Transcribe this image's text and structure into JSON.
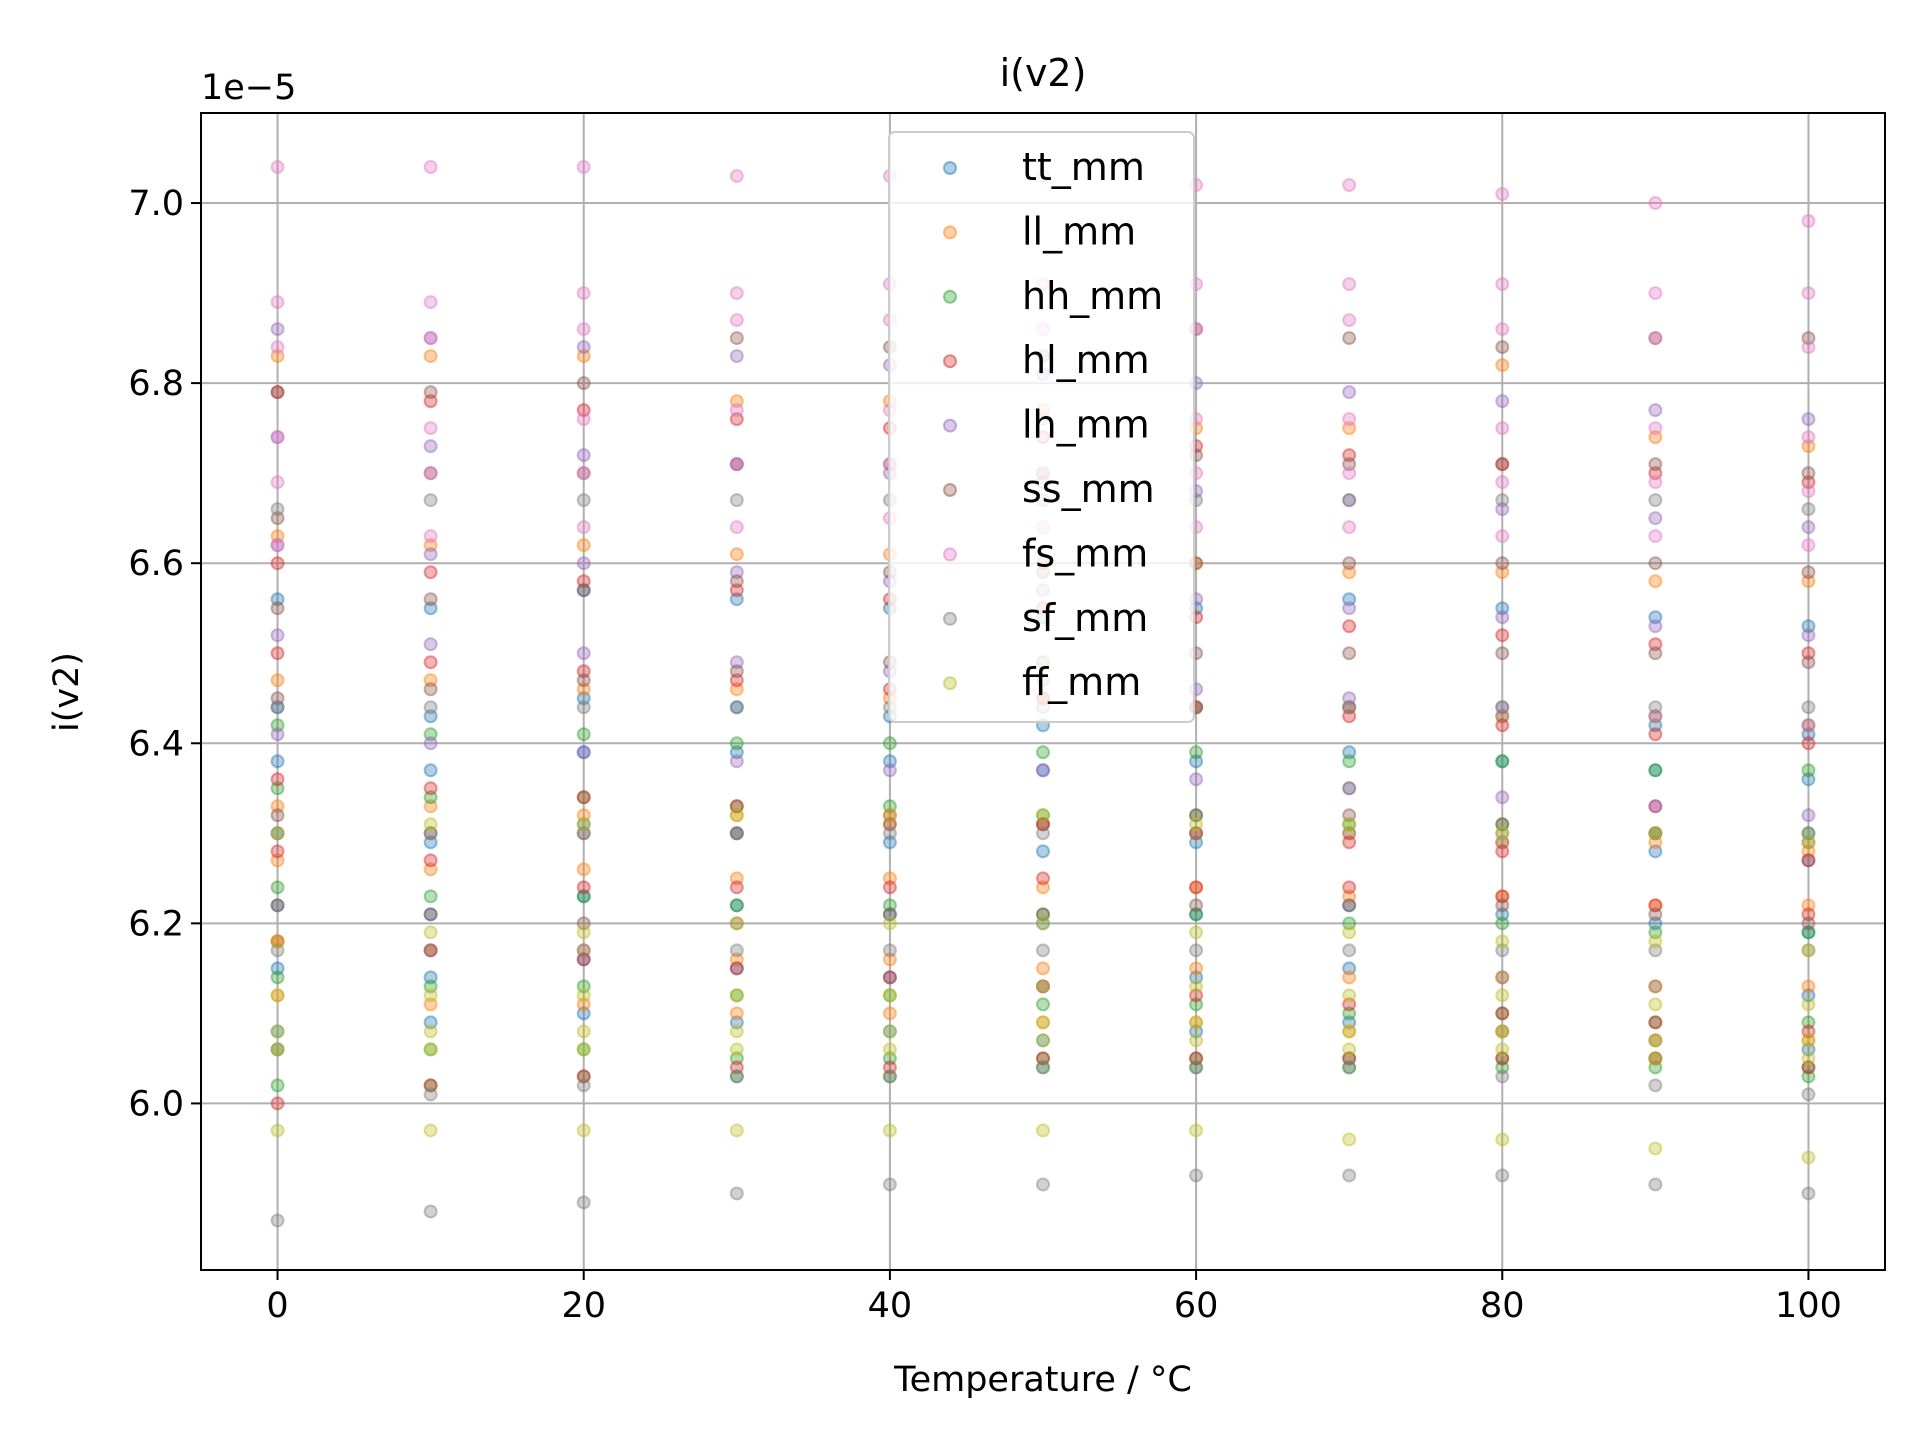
{
  "chart_data": {
    "type": "scatter",
    "title": "i(v2)",
    "xlabel": "Temperature / °C",
    "ylabel": "i(v2)",
    "y_offset_label": "1e−5",
    "xlim": [
      -5,
      105
    ],
    "ylim": [
      5.815,
      7.1
    ],
    "x_ticks": [
      0,
      20,
      40,
      60,
      80,
      100
    ],
    "x_tick_labels": [
      "0",
      "20",
      "40",
      "60",
      "80",
      "100"
    ],
    "y_ticks": [
      6.0,
      6.2,
      6.4,
      6.6,
      6.8,
      7.0
    ],
    "y_tick_labels": [
      "6.0",
      "6.2",
      "6.4",
      "6.6",
      "6.8",
      "7.0"
    ],
    "grid": true,
    "legend_position": "upper-center",
    "x": [
      0,
      10,
      20,
      30,
      40,
      50,
      60,
      70,
      80,
      90,
      100
    ],
    "series": [
      {
        "name": "tt_mm",
        "color": "#1f77b4",
        "values": [
          [
            6.56,
            6.44,
            6.38,
            6.3,
            6.22,
            6.15,
            6.08
          ],
          [
            6.55,
            6.43,
            6.37,
            6.29,
            6.21,
            6.14,
            6.09
          ],
          [
            6.57,
            6.45,
            6.39,
            6.31,
            6.23,
            6.16,
            6.1
          ],
          [
            6.56,
            6.44,
            6.39,
            6.3,
            6.22,
            6.15,
            6.09
          ],
          [
            6.55,
            6.43,
            6.38,
            6.29,
            6.21,
            6.14,
            6.08
          ],
          [
            6.54,
            6.42,
            6.37,
            6.28,
            6.2,
            6.13,
            6.07
          ],
          [
            6.55,
            6.44,
            6.38,
            6.29,
            6.21,
            6.14,
            6.08
          ],
          [
            6.56,
            6.44,
            6.39,
            6.3,
            6.22,
            6.15,
            6.09
          ],
          [
            6.55,
            6.43,
            6.38,
            6.29,
            6.21,
            6.14,
            6.08
          ],
          [
            6.54,
            6.42,
            6.37,
            6.28,
            6.2,
            6.13,
            6.07
          ],
          [
            6.53,
            6.41,
            6.36,
            6.27,
            6.19,
            6.12,
            6.06
          ]
        ]
      },
      {
        "name": "ll_mm",
        "color": "#ff7f0e",
        "values": [
          [
            6.83,
            6.63,
            6.47,
            6.33,
            6.27,
            6.18,
            6.12
          ],
          [
            6.83,
            6.62,
            6.47,
            6.33,
            6.26,
            6.17,
            6.11
          ],
          [
            6.83,
            6.62,
            6.46,
            6.32,
            6.26,
            6.17,
            6.11
          ],
          [
            6.78,
            6.61,
            6.46,
            6.32,
            6.25,
            6.16,
            6.1
          ],
          [
            6.78,
            6.61,
            6.45,
            6.31,
            6.25,
            6.16,
            6.1
          ],
          [
            6.77,
            6.6,
            6.45,
            6.31,
            6.24,
            6.15,
            6.09
          ],
          [
            6.75,
            6.6,
            6.44,
            6.3,
            6.24,
            6.15,
            6.09
          ],
          [
            6.75,
            6.59,
            6.44,
            6.3,
            6.23,
            6.14,
            6.08
          ],
          [
            6.82,
            6.59,
            6.43,
            6.29,
            6.23,
            6.14,
            6.08
          ],
          [
            6.74,
            6.58,
            6.43,
            6.29,
            6.22,
            6.13,
            6.07
          ],
          [
            6.73,
            6.58,
            6.42,
            6.28,
            6.22,
            6.13,
            6.07
          ]
        ]
      },
      {
        "name": "hh_mm",
        "color": "#2ca02c",
        "values": [
          [
            6.42,
            6.35,
            6.24,
            6.14,
            6.06,
            6.02
          ],
          [
            6.41,
            6.34,
            6.23,
            6.13,
            6.06,
            6.02
          ],
          [
            6.41,
            6.34,
            6.23,
            6.13,
            6.06,
            6.03
          ],
          [
            6.4,
            6.33,
            6.22,
            6.12,
            6.05,
            6.03
          ],
          [
            6.4,
            6.33,
            6.22,
            6.12,
            6.05,
            6.03
          ],
          [
            6.39,
            6.32,
            6.21,
            6.11,
            6.05,
            6.04
          ],
          [
            6.39,
            6.32,
            6.21,
            6.11,
            6.05,
            6.04
          ],
          [
            6.38,
            6.31,
            6.2,
            6.1,
            6.05,
            6.04
          ],
          [
            6.38,
            6.31,
            6.2,
            6.1,
            6.05,
            6.04
          ],
          [
            6.37,
            6.3,
            6.19,
            6.09,
            6.05,
            6.04
          ],
          [
            6.37,
            6.3,
            6.19,
            6.09,
            6.04,
            6.03
          ]
        ]
      },
      {
        "name": "hl_mm",
        "color": "#d62728",
        "values": [
          [
            6.79,
            6.6,
            6.5,
            6.36,
            6.28,
            6.18,
            6.0
          ],
          [
            6.78,
            6.59,
            6.49,
            6.35,
            6.27,
            6.17,
            6.02
          ],
          [
            6.77,
            6.58,
            6.48,
            6.34,
            6.24,
            6.16,
            6.03
          ],
          [
            6.76,
            6.57,
            6.47,
            6.33,
            6.24,
            6.15,
            6.04
          ],
          [
            6.75,
            6.56,
            6.46,
            6.32,
            6.24,
            6.14,
            6.04
          ],
          [
            6.74,
            6.55,
            6.45,
            6.31,
            6.25,
            6.13,
            6.05
          ],
          [
            6.73,
            6.54,
            6.44,
            6.3,
            6.24,
            6.12,
            6.05
          ],
          [
            6.72,
            6.53,
            6.43,
            6.29,
            6.24,
            6.11,
            6.05
          ],
          [
            6.71,
            6.52,
            6.42,
            6.28,
            6.23,
            6.1,
            6.05
          ],
          [
            6.7,
            6.51,
            6.41,
            6.33,
            6.22,
            6.09,
            6.05
          ],
          [
            6.69,
            6.5,
            6.4,
            6.27,
            6.21,
            6.08,
            6.04
          ]
        ]
      },
      {
        "name": "lh_mm",
        "color": "#9467bd",
        "values": [
          [
            6.86,
            6.74,
            6.62,
            6.52,
            6.41
          ],
          [
            6.85,
            6.73,
            6.61,
            6.51,
            6.4
          ],
          [
            6.84,
            6.72,
            6.6,
            6.5,
            6.39
          ],
          [
            6.83,
            6.71,
            6.59,
            6.49,
            6.38
          ],
          [
            6.82,
            6.7,
            6.58,
            6.48,
            6.37
          ],
          [
            6.81,
            6.69,
            6.57,
            6.47,
            6.37
          ],
          [
            6.8,
            6.68,
            6.56,
            6.46,
            6.36
          ],
          [
            6.79,
            6.67,
            6.55,
            6.45,
            6.35
          ],
          [
            6.78,
            6.66,
            6.54,
            6.44,
            6.34
          ],
          [
            6.77,
            6.65,
            6.53,
            6.43,
            6.33
          ],
          [
            6.76,
            6.64,
            6.52,
            6.42,
            6.32
          ]
        ]
      },
      {
        "name": "ss_mm",
        "color": "#8c564b",
        "values": [
          [
            6.79,
            6.65,
            6.55,
            6.45,
            6.32,
            6.22
          ],
          [
            6.79,
            6.7,
            6.56,
            6.46,
            6.3,
            6.21
          ],
          [
            6.8,
            6.7,
            6.57,
            6.47,
            6.3,
            6.2
          ],
          [
            6.85,
            6.71,
            6.58,
            6.48,
            6.3,
            6.2
          ],
          [
            6.84,
            6.71,
            6.59,
            6.49,
            6.31,
            6.21
          ],
          [
            6.83,
            6.7,
            6.59,
            6.49,
            6.31,
            6.21
          ],
          [
            6.86,
            6.72,
            6.6,
            6.5,
            6.32,
            6.22
          ],
          [
            6.85,
            6.71,
            6.6,
            6.5,
            6.32,
            6.22
          ],
          [
            6.84,
            6.71,
            6.6,
            6.5,
            6.31,
            6.22
          ],
          [
            6.85,
            6.71,
            6.6,
            6.5,
            6.3,
            6.21
          ],
          [
            6.85,
            6.7,
            6.59,
            6.49,
            6.29,
            6.2
          ]
        ]
      },
      {
        "name": "fs_mm",
        "color": "#e377c2",
        "values": [
          [
            7.04,
            6.89,
            6.84,
            6.74,
            6.69,
            6.62
          ],
          [
            7.04,
            6.89,
            6.85,
            6.75,
            6.7,
            6.63
          ],
          [
            7.04,
            6.9,
            6.86,
            6.76,
            6.7,
            6.64
          ],
          [
            7.03,
            6.9,
            6.87,
            6.77,
            6.71,
            6.64
          ],
          [
            7.03,
            6.91,
            6.87,
            6.77,
            6.71,
            6.65
          ],
          [
            7.03,
            6.91,
            6.86,
            6.76,
            6.7,
            6.64
          ],
          [
            7.02,
            6.91,
            6.86,
            6.76,
            6.7,
            6.64
          ],
          [
            7.02,
            6.91,
            6.87,
            6.76,
            6.7,
            6.64
          ],
          [
            7.01,
            6.91,
            6.86,
            6.75,
            6.69,
            6.63
          ],
          [
            7.0,
            6.9,
            6.85,
            6.75,
            6.69,
            6.63
          ],
          [
            6.98,
            6.9,
            6.84,
            6.74,
            6.68,
            6.62
          ]
        ]
      },
      {
        "name": "sf_mm",
        "color": "#7f7f7f",
        "values": [
          [
            6.66,
            6.44,
            6.3,
            6.17,
            6.06,
            5.87
          ],
          [
            6.67,
            6.44,
            6.3,
            6.17,
            6.01,
            5.88
          ],
          [
            6.67,
            6.44,
            6.3,
            6.17,
            6.02,
            5.89
          ],
          [
            6.67,
            6.44,
            6.3,
            6.17,
            6.03,
            5.9
          ],
          [
            6.67,
            6.44,
            6.3,
            6.17,
            6.03,
            5.91
          ],
          [
            6.67,
            6.44,
            6.3,
            6.17,
            6.04,
            5.91
          ],
          [
            6.67,
            6.44,
            6.3,
            6.17,
            6.04,
            5.92
          ],
          [
            6.67,
            6.44,
            6.35,
            6.17,
            6.04,
            5.92
          ],
          [
            6.67,
            6.44,
            6.3,
            6.17,
            6.03,
            5.92
          ],
          [
            6.67,
            6.44,
            6.3,
            6.17,
            6.02,
            5.91
          ],
          [
            6.66,
            6.44,
            6.3,
            6.17,
            6.01,
            5.9
          ]
        ]
      },
      {
        "name": "ff_mm",
        "color": "#bcbd22",
        "values": [
          [
            6.3,
            6.18,
            6.12,
            6.08,
            6.06,
            5.97
          ],
          [
            6.31,
            6.19,
            6.12,
            6.08,
            6.06,
            5.97
          ],
          [
            6.31,
            6.19,
            6.12,
            6.08,
            6.06,
            5.97
          ],
          [
            6.32,
            6.2,
            6.12,
            6.08,
            6.06,
            5.97
          ],
          [
            6.32,
            6.2,
            6.12,
            6.08,
            6.06,
            5.97
          ],
          [
            6.32,
            6.2,
            6.13,
            6.09,
            6.07,
            5.97
          ],
          [
            6.31,
            6.19,
            6.13,
            6.09,
            6.07,
            5.97
          ],
          [
            6.31,
            6.19,
            6.12,
            6.08,
            6.06,
            5.96
          ],
          [
            6.3,
            6.18,
            6.12,
            6.08,
            6.06,
            5.96
          ],
          [
            6.3,
            6.18,
            6.11,
            6.07,
            6.05,
            5.95
          ],
          [
            6.29,
            6.17,
            6.11,
            6.07,
            6.05,
            5.94
          ]
        ]
      }
    ]
  }
}
